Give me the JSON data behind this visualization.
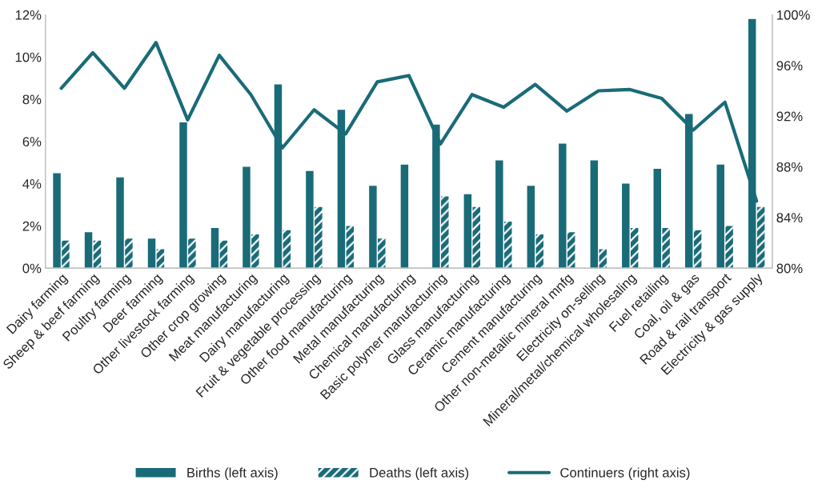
{
  "chart_data": {
    "type": "bar",
    "categories": [
      "Dairy farming",
      "Sheep & beef farming",
      "Poultry farming",
      "Deer farming",
      "Other livestock farming",
      "Other crop growing",
      "Meat manufacturing",
      "Dairy manufacturing",
      "Fruit & vegetable processing",
      "Other food manufacturing",
      "Metal manufacturing",
      "Chemical manufacturing",
      "Basic polymer manufacturing",
      "Glass manufacturing",
      "Ceramic manufacturing",
      "Cement manufacturing",
      "Other non-metallic mineral mnfg",
      "Electricity on-selling",
      "Mineral/metal/chemical wholesaling",
      "Fuel retailing",
      "Coal, oil & gas",
      "Road & rail transport",
      "Electricity & gas supply"
    ],
    "series": [
      {
        "name": "Births (left axis)",
        "color": "#1a6b78",
        "values": [
          4.5,
          1.7,
          4.3,
          1.4,
          6.9,
          1.9,
          4.8,
          8.7,
          4.6,
          7.5,
          3.9,
          4.9,
          6.8,
          3.5,
          5.1,
          3.9,
          5.9,
          5.1,
          4.0,
          4.7,
          7.3,
          4.9,
          11.8
        ]
      },
      {
        "name": "Deaths (left axis)",
        "color": "#1a6b78",
        "values": [
          1.3,
          1.3,
          1.4,
          0.9,
          1.4,
          1.3,
          1.6,
          1.8,
          2.9,
          2.0,
          1.4,
          null,
          3.4,
          2.9,
          2.2,
          1.6,
          1.7,
          0.9,
          1.9,
          1.9,
          1.8,
          2.0,
          2.9
        ]
      },
      {
        "name": "Continuers (right axis)",
        "type": "line",
        "axis": "y2",
        "color": "#1a6b78",
        "values": [
          94.2,
          97.0,
          94.2,
          97.8,
          91.7,
          96.8,
          93.7,
          89.5,
          92.5,
          90.6,
          94.7,
          95.2,
          89.8,
          93.7,
          92.7,
          94.5,
          92.4,
          94.0,
          94.1,
          93.4,
          90.9,
          93.1,
          85.3
        ]
      }
    ],
    "ylim": [
      0,
      12
    ],
    "yticks": [
      {
        "value": 0,
        "label": "0%"
      },
      {
        "value": 2,
        "label": "2%"
      },
      {
        "value": 4,
        "label": "4%"
      },
      {
        "value": 6,
        "label": "6%"
      },
      {
        "value": 8,
        "label": "8%"
      },
      {
        "value": 10,
        "label": "10%"
      },
      {
        "value": 12,
        "label": "12%"
      }
    ],
    "y2lim": [
      80,
      100
    ],
    "y2ticks": [
      {
        "value": 80,
        "label": "80%"
      },
      {
        "value": 84,
        "label": "84%"
      },
      {
        "value": 88,
        "label": "88%"
      },
      {
        "value": 92,
        "label": "92%"
      },
      {
        "value": 96,
        "label": "96%"
      },
      {
        "value": 100,
        "label": "100%"
      }
    ],
    "grid": false,
    "legend": "bottom",
    "marker": "none",
    "line_style": "solid"
  }
}
